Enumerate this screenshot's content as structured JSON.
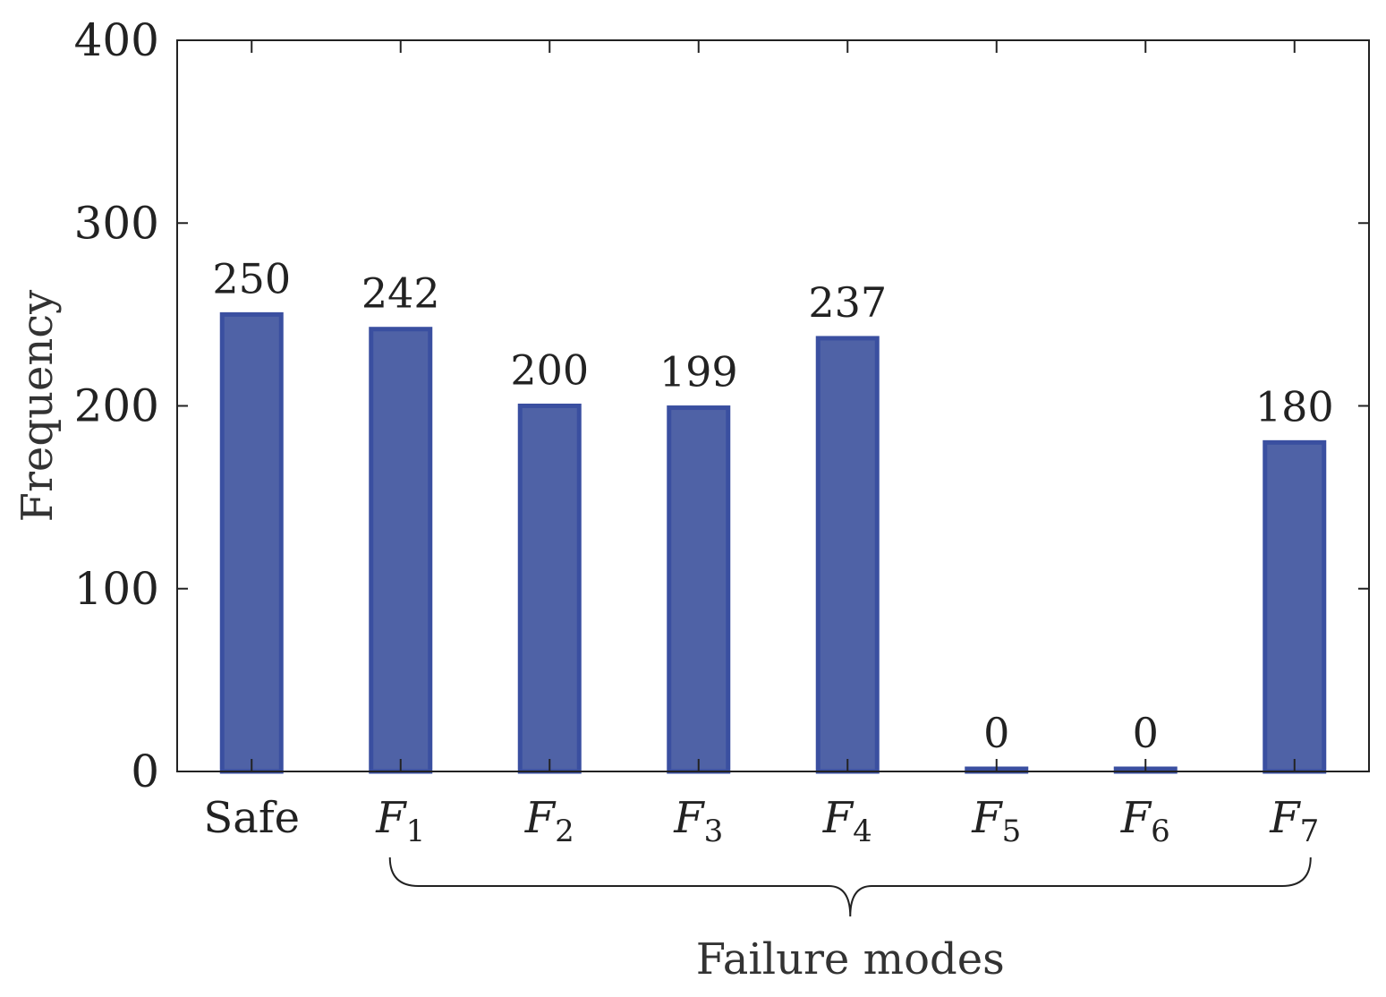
{
  "chart_data": {
    "type": "bar",
    "categories": [
      {
        "base": "Safe",
        "sub": ""
      },
      {
        "base": "F",
        "sub": "1"
      },
      {
        "base": "F",
        "sub": "2"
      },
      {
        "base": "F",
        "sub": "3"
      },
      {
        "base": "F",
        "sub": "4"
      },
      {
        "base": "F",
        "sub": "5"
      },
      {
        "base": "F",
        "sub": "6"
      },
      {
        "base": "F",
        "sub": "7"
      }
    ],
    "values": [
      250,
      242,
      200,
      199,
      237,
      0,
      0,
      180
    ],
    "data_labels": [
      "250",
      "242",
      "200",
      "199",
      "237",
      "0",
      "0",
      "180"
    ],
    "xlabel": "Failure modes",
    "ylabel": "Frequency",
    "ylim": [
      0,
      400
    ],
    "yticks": [
      0,
      100,
      200,
      300,
      400
    ],
    "grid": false,
    "bar_color": "#4F62A6",
    "bar_edge_color": "#3A4FA0",
    "bracket_span": [
      "F1",
      "F7"
    ]
  }
}
